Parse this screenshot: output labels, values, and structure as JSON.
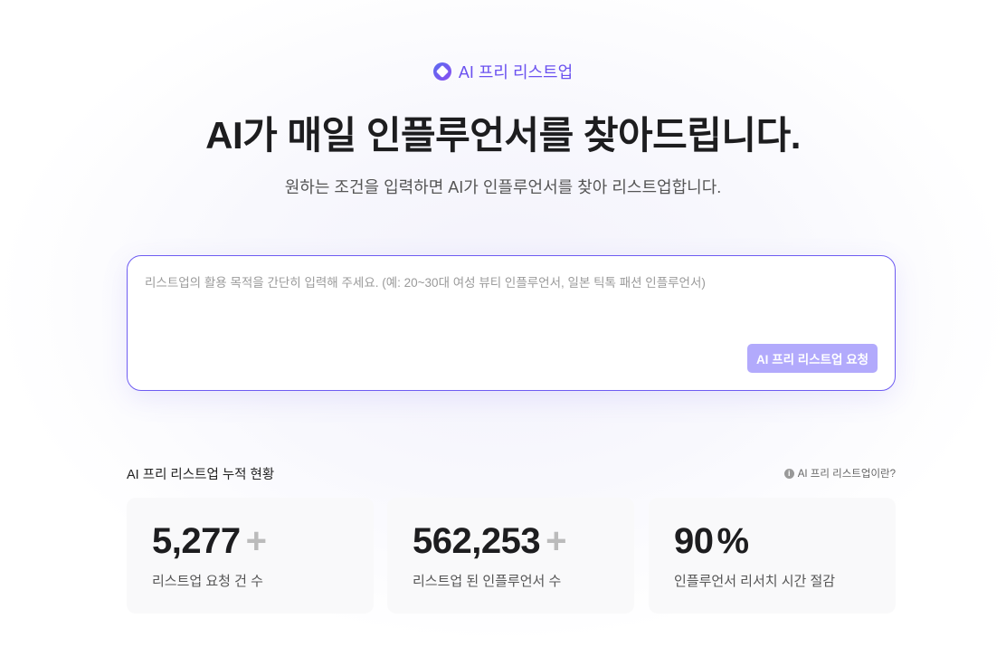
{
  "header": {
    "badge": "AI 프리 리스트업",
    "badge_icon": "diamond-logo-icon",
    "title": "AI가 매일 인플루언서를 찾아드립니다.",
    "subtitle": "원하는 조건을 입력하면 AI가 인플루언서를 찾아 리스트업합니다."
  },
  "request": {
    "value": "",
    "placeholder": "리스트업의 활용 목적을 간단히 입력해 주세요. (예: 20~30대 여성 뷰티 인플루언서, 일본 틱톡 패션 인플루언서)",
    "button": "AI 프리 리스트업 요청"
  },
  "stats": {
    "heading": "AI 프리 리스트업 누적 현황",
    "help_icon": "info-icon",
    "help": "AI 프리 리스트업이란?",
    "items": [
      {
        "value": "5,277",
        "suffix": "+",
        "label": "리스트업 요청 건 수"
      },
      {
        "value": "562,253",
        "suffix": "+",
        "label": "리스트업 된 인플루언서 수"
      },
      {
        "value": "90",
        "suffix": "%",
        "label": "인플루언서 리서치 시간 절감"
      }
    ]
  },
  "colors": {
    "accent": "#6e5cf2",
    "button": "#b2aafc"
  }
}
